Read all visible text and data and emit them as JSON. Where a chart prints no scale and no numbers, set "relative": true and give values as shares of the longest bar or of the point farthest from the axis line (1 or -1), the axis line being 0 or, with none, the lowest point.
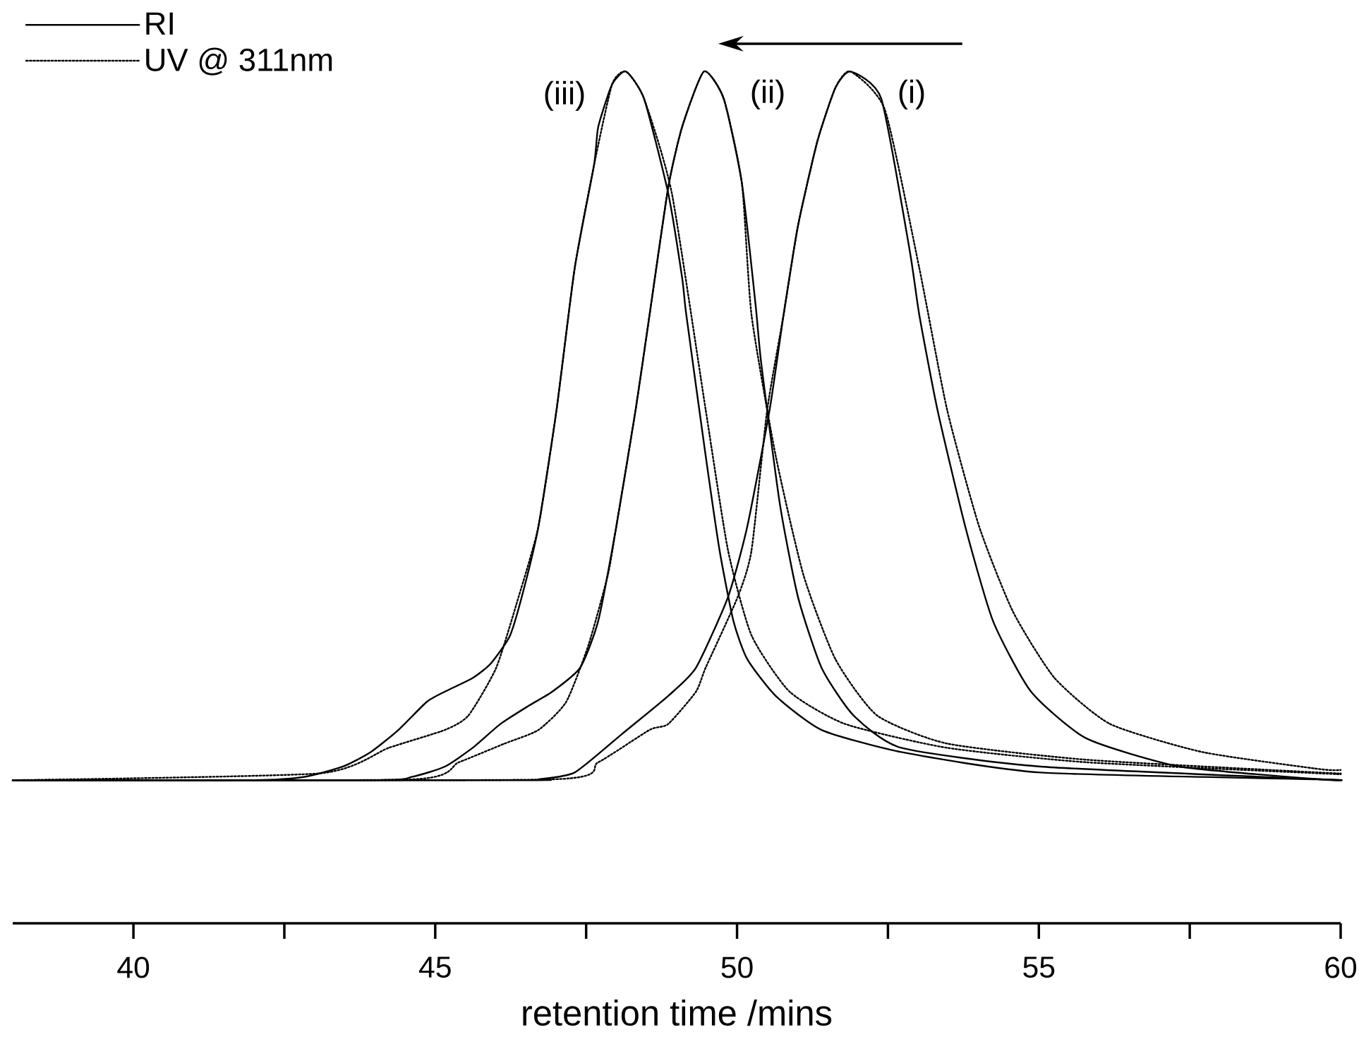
{
  "chart_data": {
    "type": "line",
    "relative": true,
    "xlabel": "retention time /mins",
    "xlim": [
      38,
      60
    ],
    "xticks": [
      40,
      {
        "value": 42.5,
        "label": null
      },
      45,
      {
        "value": 47.5,
        "label": null
      },
      50,
      {
        "value": 52.5,
        "label": null
      },
      55,
      {
        "value": 57.5,
        "label": null
      },
      60
    ],
    "legend": "top left",
    "series": [
      {
        "name": "RI",
        "color": "#000000",
        "line_style": "solid",
        "x": [
          38,
          42.0,
          42.84,
          43.47,
          43.93,
          44.39,
          44.86,
          45.16,
          45.62,
          45.92,
          46.24,
          46.47,
          46.71,
          47.01,
          47.31,
          47.63,
          47.7,
          47.93,
          48.16,
          48.46,
          48.86,
          49.09,
          49.16,
          49.48,
          49.71,
          49.94,
          50.17,
          50.64,
          51.4,
          52.72,
          55.03,
          59.65,
          60
        ],
        "values": [
          0.168,
          0.168,
          0.172,
          0.184,
          0.201,
          0.227,
          0.26,
          0.272,
          0.288,
          0.305,
          0.338,
          0.393,
          0.466,
          0.603,
          0.769,
          0.89,
          0.935,
          0.985,
          1.0,
          0.968,
          0.857,
          0.758,
          0.714,
          0.549,
          0.438,
          0.355,
          0.31,
          0.267,
          0.227,
          0.201,
          0.177,
          0.169,
          0.168
        ]
      },
      {
        "name": "UV @ 311nm",
        "color": "#000000",
        "line_style": "dotted",
        "x": [
          38,
          43.08,
          44.23,
          45.16,
          45.55,
          46.01,
          46.38,
          46.71,
          47.01,
          47.31,
          47.63,
          47.93,
          48.16,
          48.46,
          48.92,
          49.48,
          49.85,
          50.24,
          50.87,
          51.79,
          53.48,
          55.79,
          59.65,
          60
        ],
        "values": [
          0.168,
          0.176,
          0.206,
          0.227,
          0.244,
          0.3,
          0.383,
          0.466,
          0.603,
          0.769,
          0.89,
          0.985,
          1.0,
          0.968,
          0.857,
          0.603,
          0.438,
          0.338,
          0.272,
          0.234,
          0.206,
          0.189,
          0.176,
          0.175
        ]
      },
      {
        "color": "#000000",
        "line_style": "solid",
        "x": [
          38,
          44.0,
          44.62,
          45.16,
          45.62,
          46.08,
          46.54,
          46.94,
          47.4,
          47.7,
          48.0,
          48.32,
          48.55,
          48.86,
          49.09,
          49.45,
          49.78,
          50.08,
          50.31,
          50.4,
          50.71,
          51.01,
          51.4,
          51.93,
          52.72,
          55.03,
          59.65,
          60
        ],
        "values": [
          0.168,
          0.168,
          0.172,
          0.184,
          0.206,
          0.234,
          0.255,
          0.272,
          0.3,
          0.355,
          0.466,
          0.603,
          0.714,
          0.864,
          0.935,
          1.0,
          0.968,
          0.869,
          0.724,
          0.658,
          0.492,
          0.383,
          0.3,
          0.244,
          0.206,
          0.184,
          0.169,
          0.168
        ]
      },
      {
        "color": "#000000",
        "line_style": "dotted",
        "x": [
          38,
          44.62,
          45.39,
          46.15,
          46.71,
          47.17,
          47.54,
          47.86,
          48.0,
          48.32,
          48.55,
          48.86,
          49.09,
          49.45,
          49.78,
          50.08,
          50.24,
          50.64,
          51.1,
          51.63,
          52.32,
          53.48,
          55.79,
          59.65,
          60
        ],
        "values": [
          0.168,
          0.169,
          0.189,
          0.211,
          0.227,
          0.26,
          0.327,
          0.409,
          0.466,
          0.603,
          0.714,
          0.864,
          0.935,
          1.0,
          0.968,
          0.869,
          0.714,
          0.549,
          0.409,
          0.31,
          0.244,
          0.211,
          0.192,
          0.177,
          0.176
        ]
      },
      {
        "color": "#000000",
        "line_style": "solid",
        "x": [
          38,
          46.5,
          46.71,
          47.31,
          48.09,
          48.86,
          49.32,
          49.85,
          50.17,
          50.54,
          50.77,
          51.01,
          51.33,
          51.63,
          51.88,
          52.39,
          52.86,
          53.02,
          53.32,
          53.78,
          54.24,
          54.87,
          55.79,
          57.34,
          59.65,
          60
        ],
        "values": [
          0.168,
          0.168,
          0.169,
          0.177,
          0.222,
          0.267,
          0.3,
          0.383,
          0.466,
          0.603,
          0.714,
          0.819,
          0.918,
          0.981,
          1.0,
          0.968,
          0.79,
          0.714,
          0.603,
          0.466,
          0.355,
          0.272,
          0.217,
          0.184,
          0.169,
          0.168
        ]
      },
      {
        "color": "#000000",
        "line_style": "dotted",
        "x": [
          38,
          46.94,
          47.7,
          48.55,
          48.86,
          49.32,
          49.48,
          50.01,
          50.24,
          50.5,
          50.77,
          51.01,
          51.33,
          51.63,
          51.88,
          52.45,
          53.02,
          53.48,
          54.01,
          54.57,
          55.26,
          56.18,
          57.71,
          59.65,
          60
        ],
        "values": [
          0.168,
          0.169,
          0.189,
          0.227,
          0.234,
          0.272,
          0.3,
          0.383,
          0.438,
          0.603,
          0.714,
          0.819,
          0.918,
          0.981,
          1.0,
          0.955,
          0.769,
          0.603,
          0.466,
          0.366,
          0.288,
          0.234,
          0.201,
          0.181,
          0.18
        ]
      }
    ],
    "annotations": [
      "(iii)",
      "(ii)",
      "(i)"
    ]
  }
}
